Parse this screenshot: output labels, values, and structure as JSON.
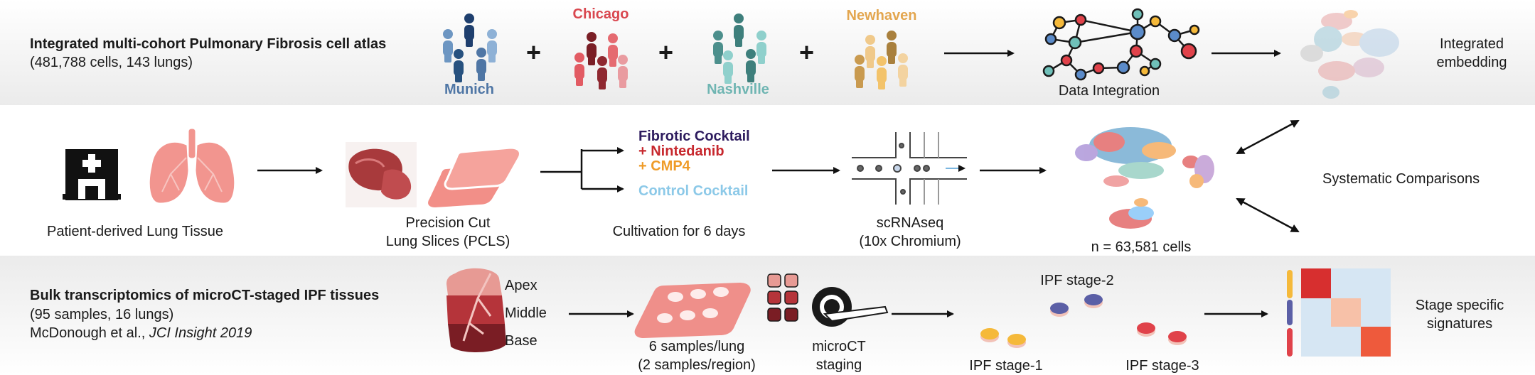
{
  "row1": {
    "title": "Integrated multi-cohort Pulmonary Fibrosis cell atlas",
    "subtitle": "(481,788 cells, 143 lungs)",
    "cohorts": [
      {
        "label": "Munich",
        "color": "#4f76a5"
      },
      {
        "label": "Chicago",
        "color": "#d9474f"
      },
      {
        "label": "Nashville",
        "color": "#6fb5b2"
      },
      {
        "label": "Newhaven",
        "color": "#e3a64f"
      }
    ],
    "plus": "+",
    "integration_label": "Data Integration",
    "embedding_label_line1": "Integrated",
    "embedding_label_line2": "embedding"
  },
  "row2": {
    "tissue_label": "Patient-derived Lung Tissue",
    "pcls_line1": "Precision Cut",
    "pcls_line2": "Lung Slices (PCLS)",
    "treatments": [
      {
        "label": "Fibrotic Cocktail",
        "color": "#2d1b5e"
      },
      {
        "label": "+ Nintedanib",
        "color": "#c7282e"
      },
      {
        "label": "+ CMP4",
        "color": "#ef9b27"
      },
      {
        "label": "Control Cocktail",
        "color": "#8cc9e8"
      }
    ],
    "cultivation_label": "Cultivation for 6 days",
    "scrnaseq_line1": "scRNAseq",
    "scrnaseq_line2": "(10x Chromium)",
    "cells_label": "n = 63,581 cells",
    "comparison_label": "Systematic Comparisons"
  },
  "row3": {
    "title": "Bulk transcriptomics of microCT-staged IPF tissues",
    "subtitle": "(95 samples, 16 lungs)",
    "citation_plain": "McDonough et al., ",
    "citation_italic": "JCI Insight 2019",
    "regions": [
      "Apex",
      "Middle",
      "Base"
    ],
    "samples_line1": "6 samples/lung",
    "samples_line2": "(2 samples/region)",
    "microct_line1": "microCT",
    "microct_line2": "staging",
    "stages": [
      "IPF stage-1",
      "IPF stage-2",
      "IPF stage-3"
    ],
    "stage_colors": [
      "#f5b93a",
      "#5b5fa6",
      "#e0424a"
    ],
    "signature_line1": "Stage specific",
    "signature_line2": "signatures"
  }
}
